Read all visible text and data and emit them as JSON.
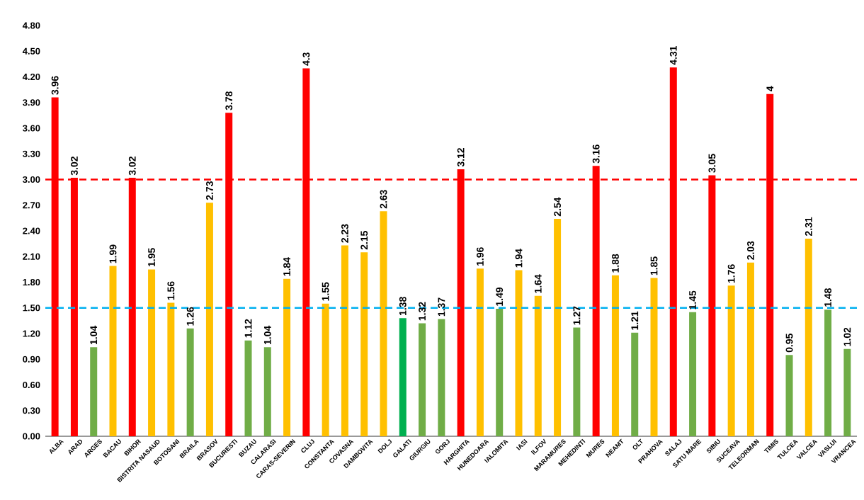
{
  "chart_data": {
    "type": "bar",
    "categories": [
      "ALBA",
      "ARAD",
      "ARGES",
      "BACAU",
      "BIHOR",
      "BISTRITA NASAUD",
      "BOTOSANI",
      "BRAILA",
      "BRASOV",
      "BUCURESTI",
      "BUZAU",
      "CALARASI",
      "CARAS-SEVERIN",
      "CLUJ",
      "CONSTANTA",
      "COVASNA",
      "DAMBOVITA",
      "DOLJ",
      "GALATI",
      "GIURGIU",
      "GORJ",
      "HARGHITA",
      "HUNEDOARA",
      "IALOMITA",
      "IASI",
      "ILFOV",
      "MARAMURES",
      "MEHEDINTI",
      "MURES",
      "NEAMT",
      "OLT",
      "PRAHOVA",
      "SALAJ",
      "SATU MARE",
      "SIBIU",
      "SUCEAVA",
      "TELEORMAN",
      "TIMIS",
      "TULCEA",
      "VALCEA",
      "VASLUI",
      "VRANCEA"
    ],
    "values": [
      3.96,
      3.02,
      1.04,
      1.99,
      3.02,
      1.95,
      1.56,
      1.26,
      2.73,
      3.78,
      1.12,
      1.04,
      1.84,
      4.3,
      1.55,
      2.23,
      2.15,
      2.63,
      1.38,
      1.32,
      1.37,
      3.12,
      1.96,
      1.49,
      1.94,
      1.64,
      2.54,
      1.27,
      3.16,
      1.88,
      1.21,
      1.85,
      4.31,
      1.45,
      3.05,
      1.76,
      2.03,
      4,
      0.95,
      2.31,
      1.48,
      1.02
    ],
    "value_labels": [
      "3.96",
      "3.02",
      "1.04",
      "1.99",
      "3.02",
      "1.95",
      "1.56",
      "1.26",
      "2.73",
      "3.78",
      "1.12",
      "1.04",
      "1.84",
      "4.3",
      "1.55",
      "2.23",
      "2.15",
      "2.63",
      "1.38",
      "1.32",
      "1.37",
      "3.12",
      "1.96",
      "1.49",
      "1.94",
      "1.64",
      "2.54",
      "1.27",
      "3.16",
      "1.88",
      "1.21",
      "1.85",
      "4.31",
      "1.45",
      "3.05",
      "1.76",
      "2.03",
      "4",
      "0.95",
      "2.31",
      "1.48",
      "1.02"
    ],
    "colors": [
      "#ff0000",
      "#ff0000",
      "#70ad47",
      "#ffc000",
      "#ff0000",
      "#ffc000",
      "#ffc000",
      "#70ad47",
      "#ffc000",
      "#ff0000",
      "#70ad47",
      "#70ad47",
      "#ffc000",
      "#ff0000",
      "#ffc000",
      "#ffc000",
      "#ffc000",
      "#ffc000",
      "#00b050",
      "#70ad47",
      "#70ad47",
      "#ff0000",
      "#ffc000",
      "#70ad47",
      "#ffc000",
      "#ffc000",
      "#ffc000",
      "#70ad47",
      "#ff0000",
      "#ffc000",
      "#70ad47",
      "#ffc000",
      "#ff0000",
      "#70ad47",
      "#ff0000",
      "#ffc000",
      "#ffc000",
      "#ff0000",
      "#70ad47",
      "#ffc000",
      "#70ad47",
      "#70ad47"
    ],
    "ylim": [
      0,
      4.8
    ],
    "yticks": [
      {
        "value": 0,
        "label": "0.00"
      },
      {
        "value": 0.3,
        "label": "0.30"
      },
      {
        "value": 0.6,
        "label": "0.60"
      },
      {
        "value": 0.9,
        "label": "0.90"
      },
      {
        "value": 1.2,
        "label": "1.20"
      },
      {
        "value": 1.5,
        "label": "1.50"
      },
      {
        "value": 1.8,
        "label": "1.80"
      },
      {
        "value": 2.1,
        "label": "2.10"
      },
      {
        "value": 2.4,
        "label": "2.40"
      },
      {
        "value": 2.7,
        "label": "2.70"
      },
      {
        "value": 3.0,
        "label": "3.00"
      },
      {
        "value": 3.3,
        "label": "3.30"
      },
      {
        "value": 3.6,
        "label": "3.60"
      },
      {
        "value": 3.9,
        "label": "3.90"
      },
      {
        "value": 4.2,
        "label": "4.20"
      },
      {
        "value": 4.5,
        "label": "4.50"
      },
      {
        "value": 4.8,
        "label": "4.80"
      }
    ],
    "ref_lines": [
      {
        "axis": "y",
        "value": 3.0,
        "color": "#ff0000",
        "line_style": "dashed"
      },
      {
        "axis": "y",
        "value": 1.5,
        "color": "#00b0f0",
        "line_style": "dashed"
      }
    ]
  }
}
